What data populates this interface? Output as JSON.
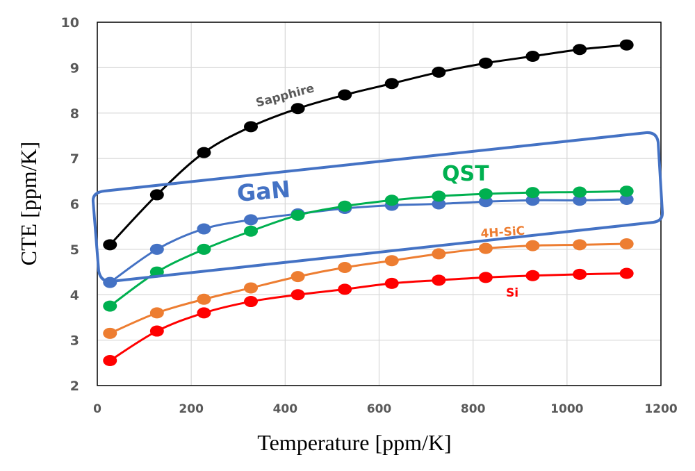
{
  "chart_data": {
    "type": "line",
    "title": "",
    "xlabel": "Temperature [ppm/K]",
    "ylabel": "CTE [ppm/K]",
    "xlim": [
      0,
      1200
    ],
    "ylim": [
      2,
      10
    ],
    "xticks": [
      0,
      200,
      400,
      600,
      800,
      1000,
      1200
    ],
    "yticks": [
      2,
      3,
      4,
      5,
      6,
      7,
      8,
      9,
      10
    ],
    "grid": true,
    "legend": "none (inline labels)",
    "x": [
      27,
      127,
      227,
      327,
      427,
      527,
      627,
      727,
      827,
      927,
      1027,
      1127
    ],
    "series": [
      {
        "name": "Sapphire",
        "color": "#000000",
        "label_color": "#595959",
        "values": [
          5.1,
          6.2,
          7.13,
          7.7,
          8.1,
          8.4,
          8.65,
          8.9,
          9.1,
          9.25,
          9.4,
          9.5
        ]
      },
      {
        "name": "GaN",
        "color": "#4472C4",
        "label_color": "#4472C4",
        "values": [
          4.27,
          5.0,
          5.45,
          5.65,
          5.78,
          5.9,
          5.97,
          6.0,
          6.05,
          6.08,
          6.08,
          6.1
        ]
      },
      {
        "name": "QST",
        "color": "#00B050",
        "label_color": "#00B050",
        "values": [
          3.75,
          4.5,
          5.0,
          5.4,
          5.75,
          5.95,
          6.08,
          6.17,
          6.22,
          6.25,
          6.26,
          6.28
        ]
      },
      {
        "name": "4H-SiC",
        "color": "#ED7D31",
        "label_color": "#ED7D31",
        "values": [
          3.15,
          3.6,
          3.9,
          4.15,
          4.4,
          4.6,
          4.75,
          4.9,
          5.02,
          5.08,
          5.1,
          5.12
        ]
      },
      {
        "name": "Si",
        "color": "#FF0000",
        "label_color": "#FF0000",
        "values": [
          2.55,
          3.2,
          3.6,
          3.85,
          4.0,
          4.12,
          4.25,
          4.32,
          4.38,
          4.42,
          4.45,
          4.47
        ]
      }
    ],
    "annotations": [
      {
        "text": "Sapphire",
        "series": "Sapphire"
      },
      {
        "text": "GaN",
        "series": "GaN"
      },
      {
        "text": "QST",
        "series": "QST"
      },
      {
        "text": "4H-SiC",
        "series": "4H-SiC"
      },
      {
        "text": "Si",
        "series": "Si"
      }
    ],
    "highlight_box": {
      "color": "#4472C4",
      "encloses": [
        "GaN",
        "QST"
      ]
    }
  }
}
